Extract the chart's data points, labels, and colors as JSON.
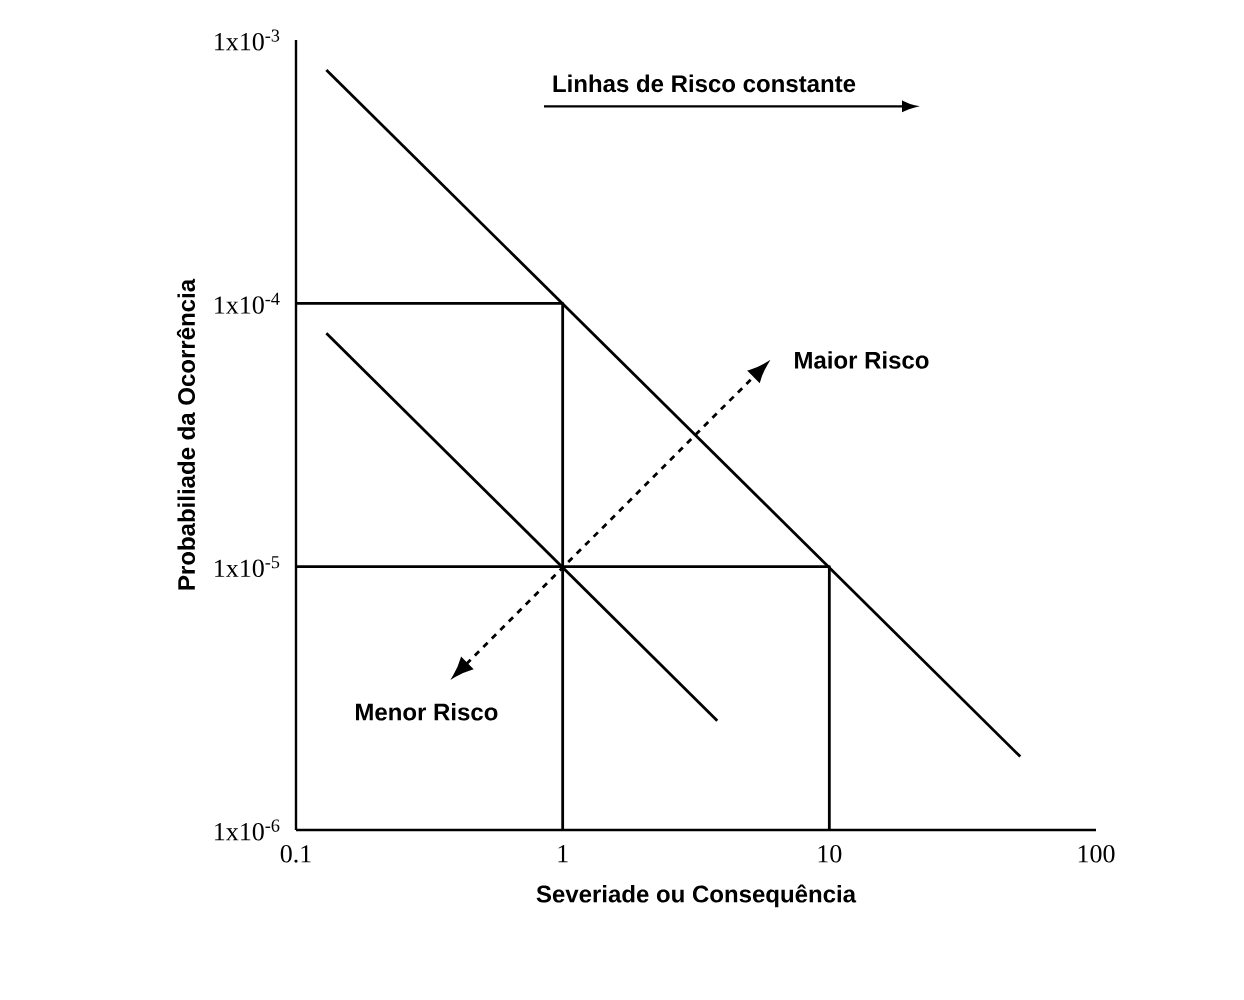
{
  "chart_data": {
    "type": "line",
    "xlabel": "Severiade ou Consequência",
    "ylabel": "Probabiliade da Ocorrência",
    "log": "xy",
    "xlim": [
      0.1,
      100
    ],
    "ylim": [
      1e-06,
      0.001
    ],
    "xticks": [
      0.1,
      1,
      10,
      100
    ],
    "yticks": [
      {
        "value": 1e-06,
        "label": "1x10$^{-6}$"
      },
      {
        "value": 1e-05,
        "label": "1x10$^{-5}$"
      },
      {
        "value": 0.0001,
        "label": "1x10$^{-4}$"
      },
      {
        "value": 0.001,
        "label": "1x10$^{-3}$"
      }
    ],
    "grid": false,
    "marker": "none",
    "line_style": "solid",
    "series": [
      {
        "color": "#000000",
        "x": [
          0.13,
          52
        ],
        "values": [
          0.00077,
          1.9e-06
        ]
      },
      {
        "color": "#000000",
        "x": [
          0.13,
          3.8
        ],
        "values": [
          7.7e-05,
          2.6e-06
        ]
      },
      {
        "color": "#000000",
        "x": [
          0.1,
          1,
          1
        ],
        "values": [
          0.0001,
          0.0001,
          1e-06
        ]
      },
      {
        "color": "#000000",
        "x": [
          0.1,
          10,
          10
        ],
        "values": [
          1e-05,
          1e-05,
          1e-06
        ]
      }
    ],
    "annotations": [
      "Linhas de Risco constante",
      "Maior Risco",
      "Menor Risco"
    ]
  }
}
